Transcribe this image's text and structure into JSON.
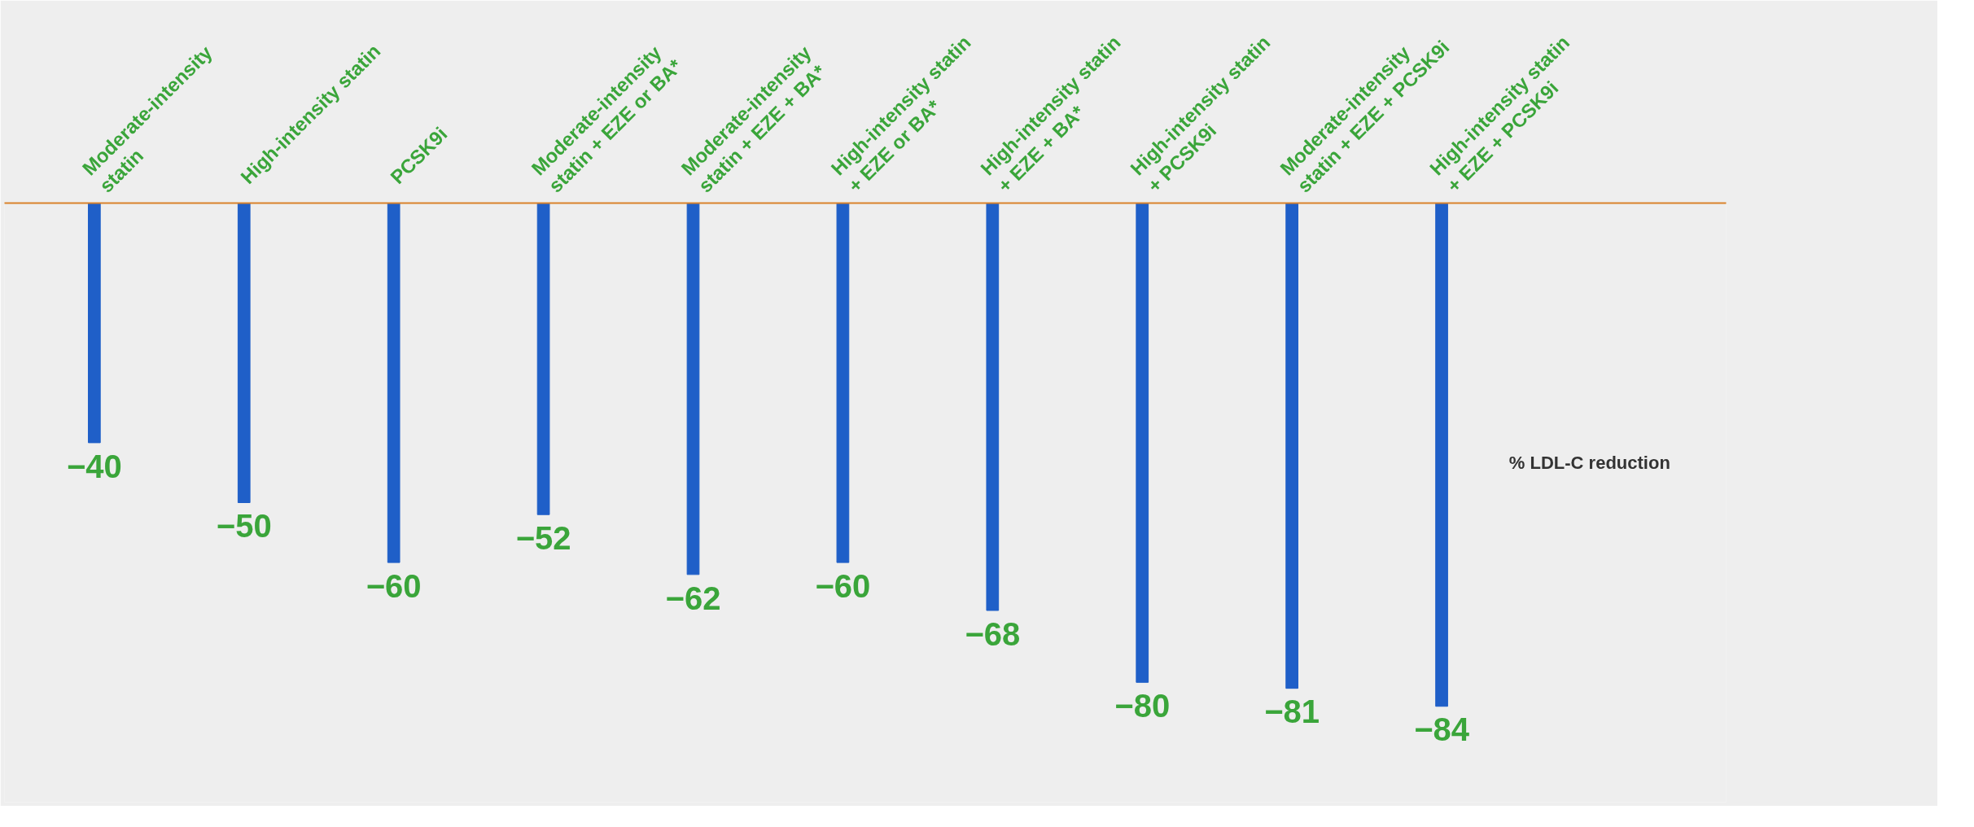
{
  "chart_data": {
    "type": "bar",
    "categories": [
      "Moderate-intensity statin",
      "High-intensity statin",
      "PCSK9i",
      "Moderate-intensity statin + EZE or BA*",
      "Moderate-intensity statin + EZE + BA*",
      "High-intensity statin + EZE or BA*",
      "High-intensity statin + EZE + BA*",
      "High-intensity statin + PCSK9i",
      "Moderate-intensity statin + EZE + PCSK9i",
      "High-intensity statin + EZE + PCSK9i"
    ],
    "values": [
      -40,
      -50,
      -60,
      -52,
      -62,
      -60,
      -68,
      -80,
      -81,
      -84
    ],
    "color": "#1f5fc8",
    "ylim": [
      -100,
      0
    ],
    "data_labels": true,
    "tick_labels": "x",
    "grid": false,
    "annotations": [
      "% LDL-C reduction"
    ]
  }
}
